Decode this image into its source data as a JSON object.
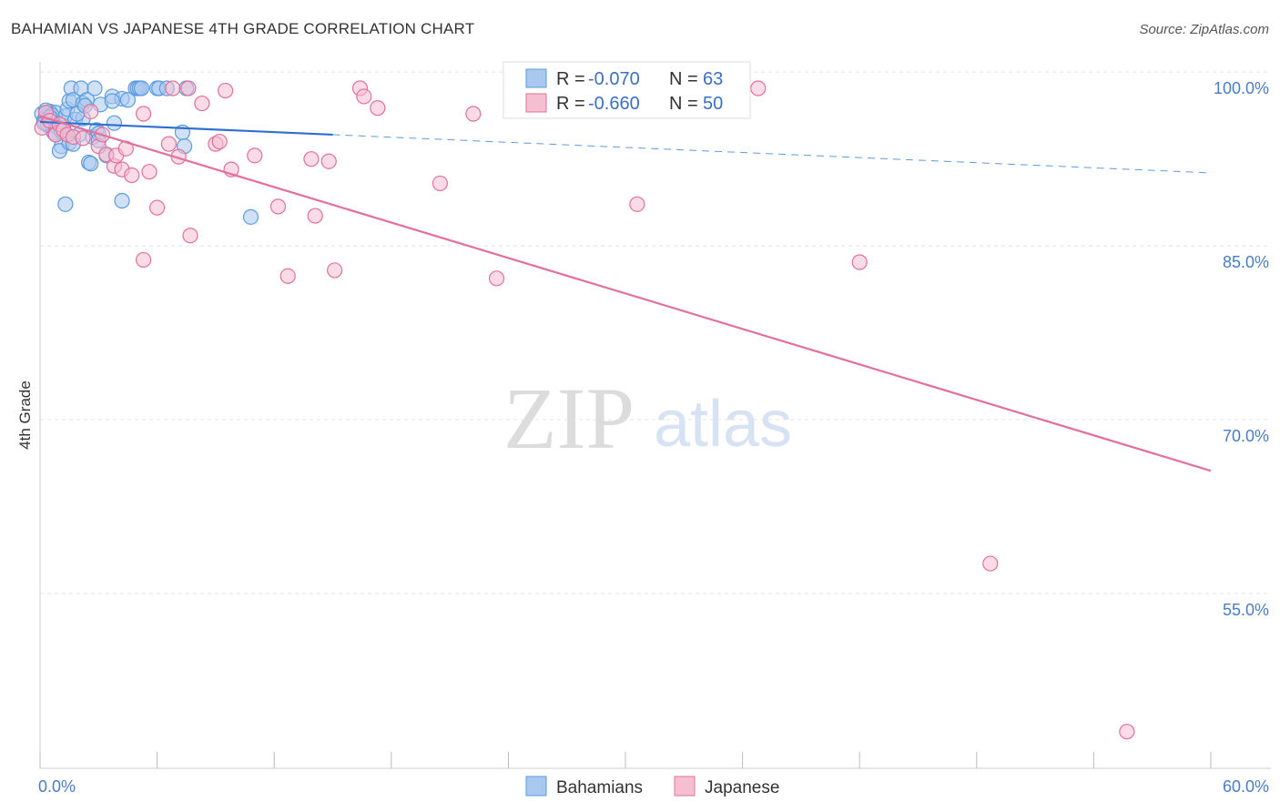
{
  "chart_data": {
    "type": "scatter",
    "title": "BAHAMIAN VS JAPANESE 4TH GRADE CORRELATION CHART",
    "source": "Source: ZipAtlas.com",
    "xlabel": "",
    "ylabel": "4th Grade",
    "xlim": [
      0,
      60
    ],
    "ylim": [
      40,
      102
    ],
    "x_tick_labels": [
      "0.0%",
      "60.0%"
    ],
    "y_ticks": [
      100,
      85,
      70,
      55
    ],
    "y_tick_labels": [
      "100.0%",
      "85.0%",
      "70.0%",
      "55.0%"
    ],
    "watermark": {
      "zip": "ZIP",
      "atlas": "atlas"
    },
    "legend_stats": [
      {
        "series": "Bahamians",
        "r_label": "R =",
        "r_value": "-0.070",
        "n_label": "N =",
        "n_value": "63"
      },
      {
        "series": "Japanese",
        "r_label": "R =",
        "r_value": "-0.660",
        "n_label": "N =",
        "n_value": "50"
      }
    ],
    "series": [
      {
        "name": "Bahamians",
        "color": "#5b9be0",
        "fill": "#a9c8ef",
        "trend": {
          "x0": 0,
          "y0": 97.1,
          "x1": 15,
          "y1": 96.0,
          "dash_to_x": 60,
          "dash_to_y": 92.7
        },
        "points": [
          [
            0.1,
            97.8
          ],
          [
            0.2,
            97.2
          ],
          [
            0.3,
            97.5
          ],
          [
            0.4,
            96.8
          ],
          [
            0.5,
            98.0
          ],
          [
            0.6,
            97.4
          ],
          [
            0.7,
            96.2
          ],
          [
            0.8,
            97.9
          ],
          [
            0.9,
            97.0
          ],
          [
            1.0,
            96.5
          ],
          [
            1.1,
            95.0
          ],
          [
            1.2,
            96.8
          ],
          [
            1.3,
            97.6
          ],
          [
            1.4,
            98.2
          ],
          [
            1.5,
            98.9
          ],
          [
            1.6,
            100.0
          ],
          [
            1.7,
            99.0
          ],
          [
            1.8,
            97.3
          ],
          [
            2.0,
            96.0
          ],
          [
            2.1,
            100.0
          ],
          [
            2.2,
            98.7
          ],
          [
            2.4,
            99.0
          ],
          [
            2.5,
            93.6
          ],
          [
            2.7,
            95.8
          ],
          [
            2.9,
            96.4
          ],
          [
            3.1,
            98.6
          ],
          [
            3.4,
            94.2
          ],
          [
            3.7,
            99.3
          ],
          [
            3.8,
            97.0
          ],
          [
            4.2,
            99.1
          ],
          [
            4.9,
            100.0
          ],
          [
            5.0,
            100.0
          ],
          [
            5.1,
            100.0
          ],
          [
            5.2,
            100.0
          ],
          [
            6.0,
            100.0
          ],
          [
            6.1,
            100.0
          ],
          [
            7.5,
            100.0
          ],
          [
            0.3,
            98.1
          ],
          [
            0.6,
            97.7
          ],
          [
            0.9,
            96.6
          ],
          [
            1.0,
            94.6
          ],
          [
            1.3,
            90.0
          ],
          [
            1.5,
            95.3
          ],
          [
            2.2,
            97.4
          ],
          [
            2.6,
            93.5
          ],
          [
            3.0,
            96.1
          ],
          [
            4.2,
            90.3
          ],
          [
            7.3,
            96.2
          ],
          [
            7.4,
            95.0
          ],
          [
            10.8,
            88.9
          ],
          [
            2.8,
            100.0
          ],
          [
            3.7,
            98.9
          ],
          [
            1.7,
            95.2
          ],
          [
            0.4,
            96.9
          ],
          [
            0.8,
            96.0
          ],
          [
            1.9,
            97.8
          ],
          [
            2.3,
            98.5
          ],
          [
            0.2,
            97.0
          ],
          [
            0.5,
            97.5
          ],
          [
            1.1,
            96.3
          ],
          [
            3.0,
            95.5
          ],
          [
            4.5,
            99.0
          ],
          [
            6.5,
            100.0
          ]
        ]
      },
      {
        "name": "Japanese",
        "color": "#e2709a",
        "fill": "#f6bed1",
        "trend": {
          "x0": 0,
          "y0": 97.6,
          "x1": 60,
          "y1": 67.0
        },
        "points": [
          [
            0.1,
            96.6
          ],
          [
            0.3,
            97.9
          ],
          [
            0.5,
            97.2
          ],
          [
            0.8,
            96.0
          ],
          [
            1.0,
            96.9
          ],
          [
            1.2,
            96.4
          ],
          [
            1.4,
            96.0
          ],
          [
            1.7,
            95.8
          ],
          [
            2.2,
            95.7
          ],
          [
            2.6,
            98.0
          ],
          [
            3.0,
            95.0
          ],
          [
            3.4,
            94.3
          ],
          [
            3.8,
            93.3
          ],
          [
            3.9,
            94.2
          ],
          [
            4.2,
            93.0
          ],
          [
            4.4,
            94.8
          ],
          [
            4.7,
            92.5
          ],
          [
            5.3,
            97.8
          ],
          [
            5.6,
            92.8
          ],
          [
            6.0,
            89.7
          ],
          [
            6.6,
            95.2
          ],
          [
            6.8,
            100.0
          ],
          [
            7.1,
            94.1
          ],
          [
            7.6,
            100.0
          ],
          [
            7.7,
            87.3
          ],
          [
            8.3,
            98.7
          ],
          [
            9.0,
            95.2
          ],
          [
            9.2,
            95.4
          ],
          [
            9.5,
            99.8
          ],
          [
            9.8,
            93.0
          ],
          [
            11.0,
            94.2
          ],
          [
            12.2,
            89.8
          ],
          [
            12.7,
            83.8
          ],
          [
            13.9,
            93.9
          ],
          [
            14.1,
            89.0
          ],
          [
            14.8,
            93.7
          ],
          [
            15.1,
            84.3
          ],
          [
            16.4,
            100.0
          ],
          [
            16.6,
            99.3
          ],
          [
            17.3,
            98.3
          ],
          [
            20.5,
            91.8
          ],
          [
            22.2,
            97.8
          ],
          [
            23.4,
            83.6
          ],
          [
            30.6,
            90.0
          ],
          [
            36.8,
            100.0
          ],
          [
            42.0,
            85.0
          ],
          [
            48.7,
            59.0
          ],
          [
            55.7,
            44.5
          ],
          [
            5.3,
            85.2
          ],
          [
            3.2,
            96.0
          ]
        ]
      }
    ],
    "bottom_legend": [
      "Bahamians",
      "Japanese"
    ]
  }
}
